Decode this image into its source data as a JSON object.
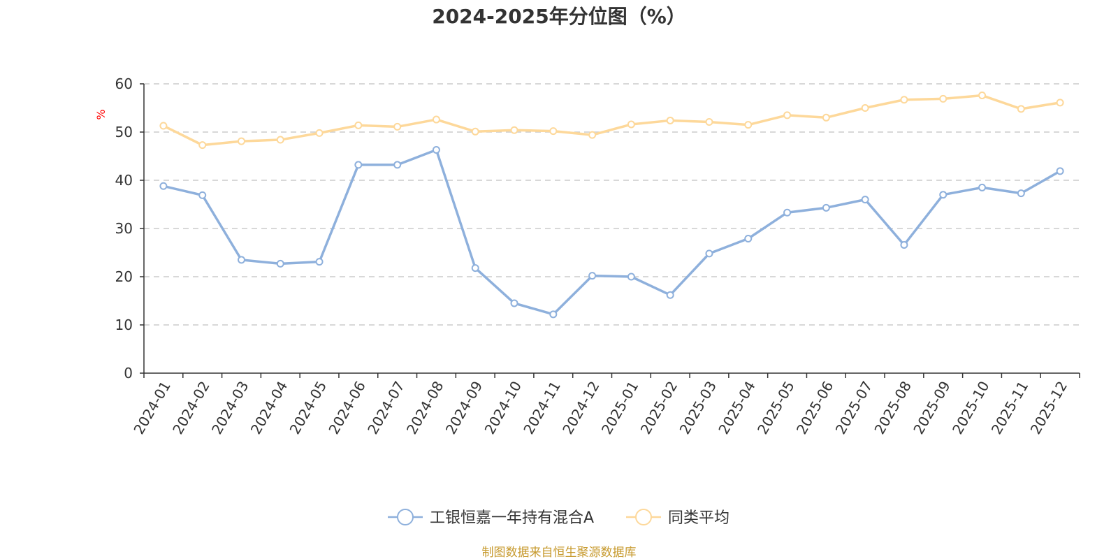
{
  "chart_data": {
    "type": "line",
    "title": "2024-2025年分位图（%）",
    "ylabel": "%",
    "xlabel": "",
    "ylim": [
      0,
      60
    ],
    "yticks": [
      0,
      10,
      20,
      30,
      40,
      50,
      60
    ],
    "grid": true,
    "legend_position": "bottom-center",
    "categories": [
      "2024-01",
      "2024-02",
      "2024-03",
      "2024-04",
      "2024-05",
      "2024-06",
      "2024-07",
      "2024-08",
      "2024-09",
      "2024-10",
      "2024-11",
      "2024-12",
      "2025-01",
      "2025-02",
      "2025-03",
      "2025-04",
      "2025-05",
      "2025-06",
      "2025-07",
      "2025-08",
      "2025-09",
      "2025-10",
      "2025-11",
      "2025-12"
    ],
    "series": [
      {
        "name": "工银恒嘉一年持有混合A",
        "color": "#8eb0dc",
        "values": [
          38.8,
          36.9,
          23.5,
          22.7,
          23.1,
          43.2,
          43.2,
          46.3,
          21.8,
          14.5,
          12.2,
          20.2,
          20.0,
          16.2,
          24.8,
          27.9,
          33.3,
          34.3,
          36.0,
          26.6,
          37.0,
          38.5,
          37.3,
          41.9
        ]
      },
      {
        "name": "同类平均",
        "color": "#fdd89a",
        "values": [
          51.3,
          47.3,
          48.1,
          48.4,
          49.8,
          51.4,
          51.1,
          52.6,
          50.1,
          50.4,
          50.2,
          49.4,
          51.6,
          52.4,
          52.1,
          51.5,
          53.5,
          53.0,
          55.0,
          56.7,
          56.9,
          57.6,
          54.8,
          56.1
        ]
      }
    ]
  },
  "source": "制图数据来自恒生聚源数据库",
  "colors": {
    "axis": "#333333",
    "grid": "#cccccc",
    "ylabel": "#ff0000",
    "source": "#c79a2e"
  }
}
